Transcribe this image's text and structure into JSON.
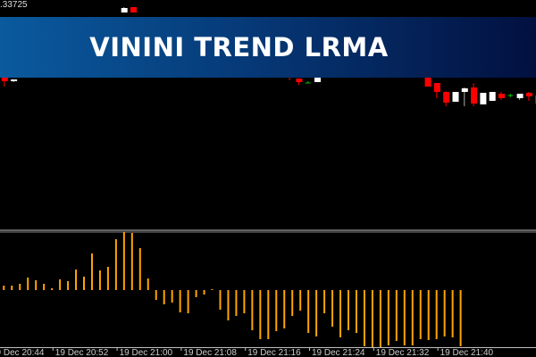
{
  "banner": {
    "title": "VININI TREND LRMA"
  },
  "price_label": ".33725",
  "colors": {
    "bull": "#ffffff",
    "bear": "#ff0000",
    "doji": "#00c000",
    "histogram": "#ffa500",
    "grid": "#c0c0c0"
  },
  "chart_data": [
    {
      "type": "candlestick",
      "top_price_label": ".33725",
      "candles": [
        {
          "i": 6,
          "o": 1.33643,
          "c": 1.33639,
          "h": 1.33643,
          "l": 1.33633
        },
        {
          "i": 7,
          "o": 1.33639,
          "c": 1.33641,
          "h": 1.33641,
          "l": 1.33638
        },
        {
          "i": 19,
          "o": 1.33716,
          "c": 1.33721,
          "h": 1.33722,
          "l": 1.33716
        },
        {
          "i": 20,
          "o": 1.33722,
          "c": 1.33716,
          "h": 1.33722,
          "l": 1.33716
        },
        {
          "i": 37,
          "o": 1.33648,
          "c": 1.33643,
          "h": 1.33648,
          "l": 1.3364
        },
        {
          "i": 38,
          "o": 1.33642,
          "c": 1.33638,
          "h": 1.33642,
          "l": 1.33635
        },
        {
          "i": 39,
          "o": 1.33637,
          "c": 1.33637,
          "h": 1.33639,
          "l": 1.33637
        },
        {
          "i": 40,
          "o": 1.33638,
          "c": 1.33643,
          "h": 1.33643,
          "l": 1.33638
        },
        {
          "i": 52,
          "o": 1.33643,
          "c": 1.33633,
          "h": 1.33643,
          "l": 1.33633
        },
        {
          "i": 53,
          "o": 1.33637,
          "c": 1.33627,
          "h": 1.33637,
          "l": 1.3362
        },
        {
          "i": 54,
          "o": 1.33627,
          "c": 1.33615,
          "h": 1.33628,
          "l": 1.33611
        },
        {
          "i": 55,
          "o": 1.33616,
          "c": 1.33627,
          "h": 1.33627,
          "l": 1.33616
        },
        {
          "i": 56,
          "o": 1.33627,
          "c": 1.33631,
          "h": 1.33632,
          "l": 1.33611
        },
        {
          "i": 57,
          "o": 1.33632,
          "c": 1.33614,
          "h": 1.33637,
          "l": 1.33611
        },
        {
          "i": 58,
          "o": 1.33613,
          "c": 1.33626,
          "h": 1.33626,
          "l": 1.33613
        },
        {
          "i": 59,
          "o": 1.33617,
          "c": 1.33627,
          "h": 1.33627,
          "l": 1.33617
        },
        {
          "i": 60,
          "o": 1.33625,
          "c": 1.3362,
          "h": 1.33627,
          "l": 1.33618
        },
        {
          "i": 61,
          "o": 1.33623,
          "c": 1.33623,
          "h": 1.33625,
          "l": 1.33621
        },
        {
          "i": 62,
          "o": 1.3362,
          "c": 1.33625,
          "h": 1.33625,
          "l": 1.33618
        },
        {
          "i": 63,
          "o": 1.33626,
          "c": 1.33622,
          "h": 1.33627,
          "l": 1.33617
        },
        {
          "i": 64,
          "o": 1.33623,
          "c": 1.33614,
          "h": 1.33623,
          "l": 1.33612
        }
      ]
    },
    {
      "type": "bar",
      "series": [
        {
          "values": [
            5,
            5,
            7,
            14,
            11,
            7,
            2,
            12,
            10,
            23,
            15,
            41,
            22,
            26,
            57,
            65,
            64,
            47,
            13,
            -11,
            -16,
            -14,
            -25,
            -26,
            -8,
            -5,
            1,
            -22,
            -34,
            -29,
            -26,
            -45,
            -55,
            -55,
            -46,
            -43,
            -29,
            -23,
            -48,
            -52,
            -26,
            -41,
            -53,
            -45,
            -48,
            -63,
            -65,
            -65,
            -62,
            -57,
            -62,
            -62,
            -55,
            -56,
            -55,
            -52,
            -53,
            -63
          ]
        }
      ],
      "x_tick_labels": [
        "19 Dec 20:44",
        "19 Dec 20:52",
        "19 Dec 21:00",
        "19 Dec 21:08",
        "19 Dec 21:16",
        "19 Dec 21:24",
        "19 Dec 21:32",
        "19 Dec 21:40"
      ]
    }
  ]
}
